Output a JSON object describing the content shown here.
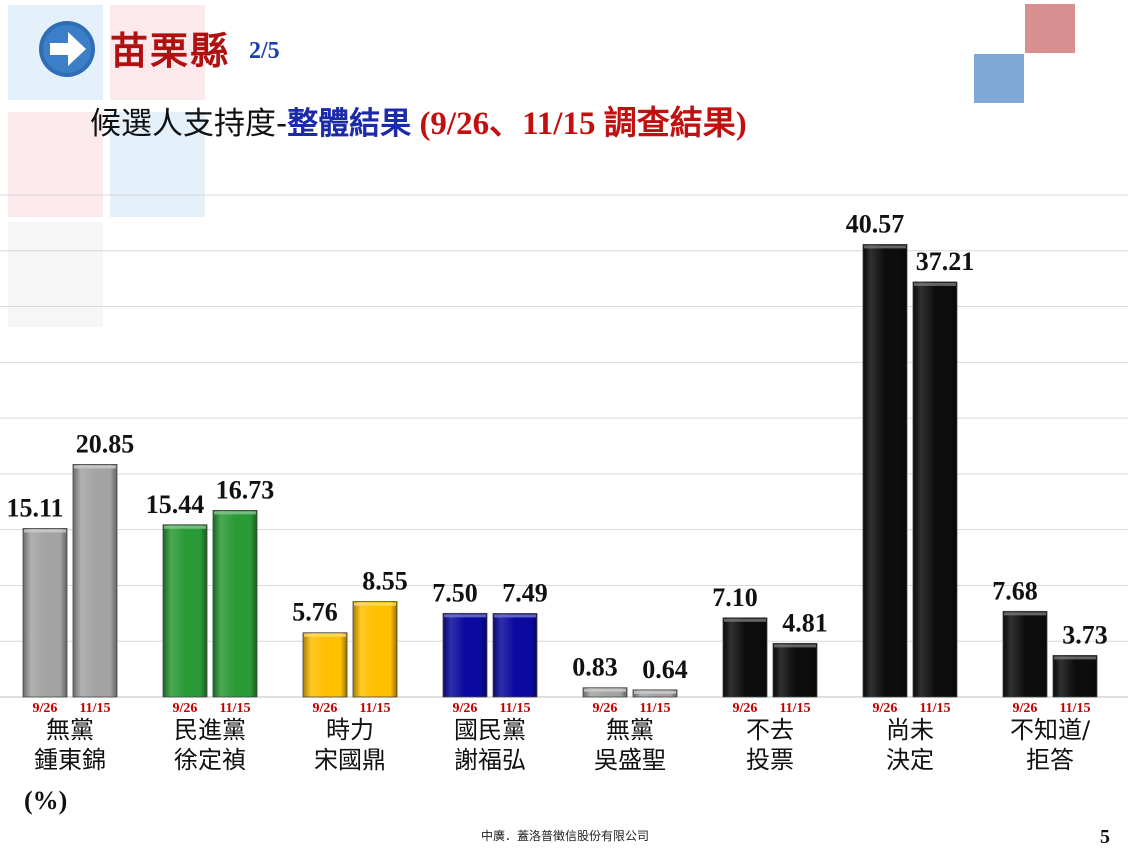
{
  "header": {
    "county": "苗栗縣",
    "page_fraction": "2/5",
    "subtitle_part1": "候選人支持度-",
    "subtitle_part2": "整體結果",
    "subtitle_part3": " (9/26、11/15 調查結果)"
  },
  "chart_data": {
    "type": "bar",
    "unit_label": "(%)",
    "ylim": [
      0,
      45
    ],
    "grid": true,
    "series_labels": [
      "9/26",
      "11/15"
    ],
    "categories": [
      {
        "line1": "無黨",
        "line2": "鍾東錦",
        "color": "#a3a3a3",
        "values": [
          15.11,
          20.85
        ],
        "value_labels": [
          "15.11",
          "20.85"
        ]
      },
      {
        "line1": "民進黨",
        "line2": "徐定禎",
        "color": "#2a9a36",
        "values": [
          15.44,
          16.73
        ],
        "value_labels": [
          "15.44",
          "16.73"
        ]
      },
      {
        "line1": "時力",
        "line2": "宋國鼎",
        "color": "#ffc000",
        "values": [
          5.76,
          8.55
        ],
        "value_labels": [
          "5.76",
          "8.55"
        ]
      },
      {
        "line1": "國民黨",
        "line2": "謝福弘",
        "color": "#0a0aa0",
        "values": [
          7.5,
          7.49
        ],
        "value_labels": [
          "7.50",
          "7.49"
        ]
      },
      {
        "line1": "無黨",
        "line2": "吳盛聖",
        "color": "#a3a3a3",
        "values": [
          0.83,
          0.64
        ],
        "value_labels": [
          "0.83",
          "0.64"
        ]
      },
      {
        "line1": "不去",
        "line2": "投票",
        "color": "#0d0d0d",
        "values": [
          7.1,
          4.81
        ],
        "value_labels": [
          "7.10",
          "4.81"
        ]
      },
      {
        "line1": "尚未",
        "line2": "決定",
        "color": "#0d0d0d",
        "values": [
          40.57,
          37.21
        ],
        "value_labels": [
          "40.57",
          "37.21"
        ]
      },
      {
        "line1": "不知道/",
        "line2": "拒答",
        "color": "#0d0d0d",
        "values": [
          7.68,
          3.73
        ],
        "value_labels": [
          "7.68",
          "3.73"
        ]
      }
    ]
  },
  "footer": {
    "company": "中廣．蓋洛普徵信股份有限公司",
    "page_number": "5"
  },
  "colors": {
    "accent_red": "#b01010",
    "accent_blue": "#1a2aa8",
    "date_label": "#c00000"
  }
}
